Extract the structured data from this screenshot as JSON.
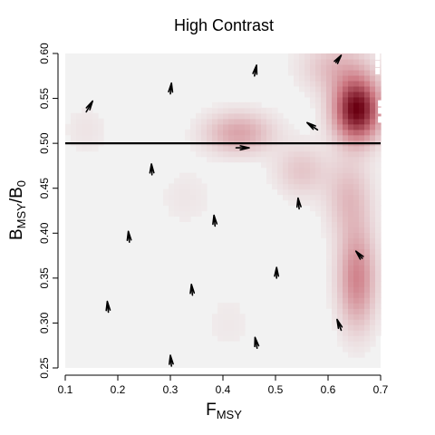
{
  "chart_data": {
    "type": "heatmap",
    "title": "High Contrast",
    "xlabel": {
      "main": "F",
      "sub": "MSY"
    },
    "ylabel": {
      "main": "B",
      "sub": "MSY",
      "sep": "/",
      "main2": "B",
      "sub2": "0"
    },
    "xlim": [
      0.1,
      0.7
    ],
    "ylim": [
      0.25,
      0.6
    ],
    "xticks": [
      "0.1",
      "0.2",
      "0.3",
      "0.4",
      "0.5",
      "0.6",
      "0.7"
    ],
    "yticks": [
      "0.25",
      "0.30",
      "0.35",
      "0.40",
      "0.45",
      "0.50",
      "0.55",
      "0.60"
    ],
    "grid": false,
    "reference_line": {
      "y": 0.5
    },
    "colors": {
      "background": "#f2f2f2",
      "low": "#f2f2f2",
      "high": "#6b0012",
      "line": "#000000"
    },
    "density_blobs": [
      {
        "x": 0.655,
        "y": 0.538,
        "sx": 0.03,
        "sy": 0.024,
        "w": 1.0
      },
      {
        "x": 0.615,
        "y": 0.585,
        "sx": 0.045,
        "sy": 0.02,
        "w": 0.22
      },
      {
        "x": 0.43,
        "y": 0.512,
        "sx": 0.045,
        "sy": 0.016,
        "w": 0.32
      },
      {
        "x": 0.55,
        "y": 0.47,
        "sx": 0.035,
        "sy": 0.02,
        "w": 0.18
      },
      {
        "x": 0.64,
        "y": 0.44,
        "sx": 0.03,
        "sy": 0.03,
        "w": 0.22
      },
      {
        "x": 0.655,
        "y": 0.35,
        "sx": 0.025,
        "sy": 0.038,
        "w": 0.45
      },
      {
        "x": 0.33,
        "y": 0.44,
        "sx": 0.04,
        "sy": 0.025,
        "w": 0.05
      },
      {
        "x": 0.41,
        "y": 0.3,
        "sx": 0.04,
        "sy": 0.03,
        "w": 0.04
      },
      {
        "x": 0.14,
        "y": 0.515,
        "sx": 0.03,
        "sy": 0.02,
        "w": 0.06
      }
    ],
    "arrows": [
      {
        "x": 0.14,
        "y": 0.535,
        "dx": 0.012,
        "dy": 0.012
      },
      {
        "x": 0.3,
        "y": 0.555,
        "dx": 0.002,
        "dy": 0.012
      },
      {
        "x": 0.46,
        "y": 0.575,
        "dx": 0.004,
        "dy": 0.012
      },
      {
        "x": 0.615,
        "y": 0.59,
        "dx": 0.01,
        "dy": 0.008
      },
      {
        "x": 0.58,
        "y": 0.515,
        "dx": -0.02,
        "dy": 0.008
      },
      {
        "x": 0.425,
        "y": 0.495,
        "dx": 0.025,
        "dy": 0.0
      },
      {
        "x": 0.265,
        "y": 0.465,
        "dx": -0.001,
        "dy": 0.012
      },
      {
        "x": 0.545,
        "y": 0.427,
        "dx": -0.002,
        "dy": 0.012
      },
      {
        "x": 0.385,
        "y": 0.408,
        "dx": -0.002,
        "dy": 0.012
      },
      {
        "x": 0.222,
        "y": 0.39,
        "dx": -0.002,
        "dy": 0.012
      },
      {
        "x": 0.665,
        "y": 0.372,
        "dx": -0.012,
        "dy": 0.008
      },
      {
        "x": 0.502,
        "y": 0.35,
        "dx": 0.0,
        "dy": 0.012
      },
      {
        "x": 0.342,
        "y": 0.331,
        "dx": -0.002,
        "dy": 0.012
      },
      {
        "x": 0.182,
        "y": 0.312,
        "dx": -0.002,
        "dy": 0.012
      },
      {
        "x": 0.625,
        "y": 0.292,
        "dx": -0.008,
        "dy": 0.012
      },
      {
        "x": 0.465,
        "y": 0.272,
        "dx": -0.004,
        "dy": 0.012
      },
      {
        "x": 0.302,
        "y": 0.252,
        "dx": -0.002,
        "dy": 0.012
      }
    ]
  }
}
